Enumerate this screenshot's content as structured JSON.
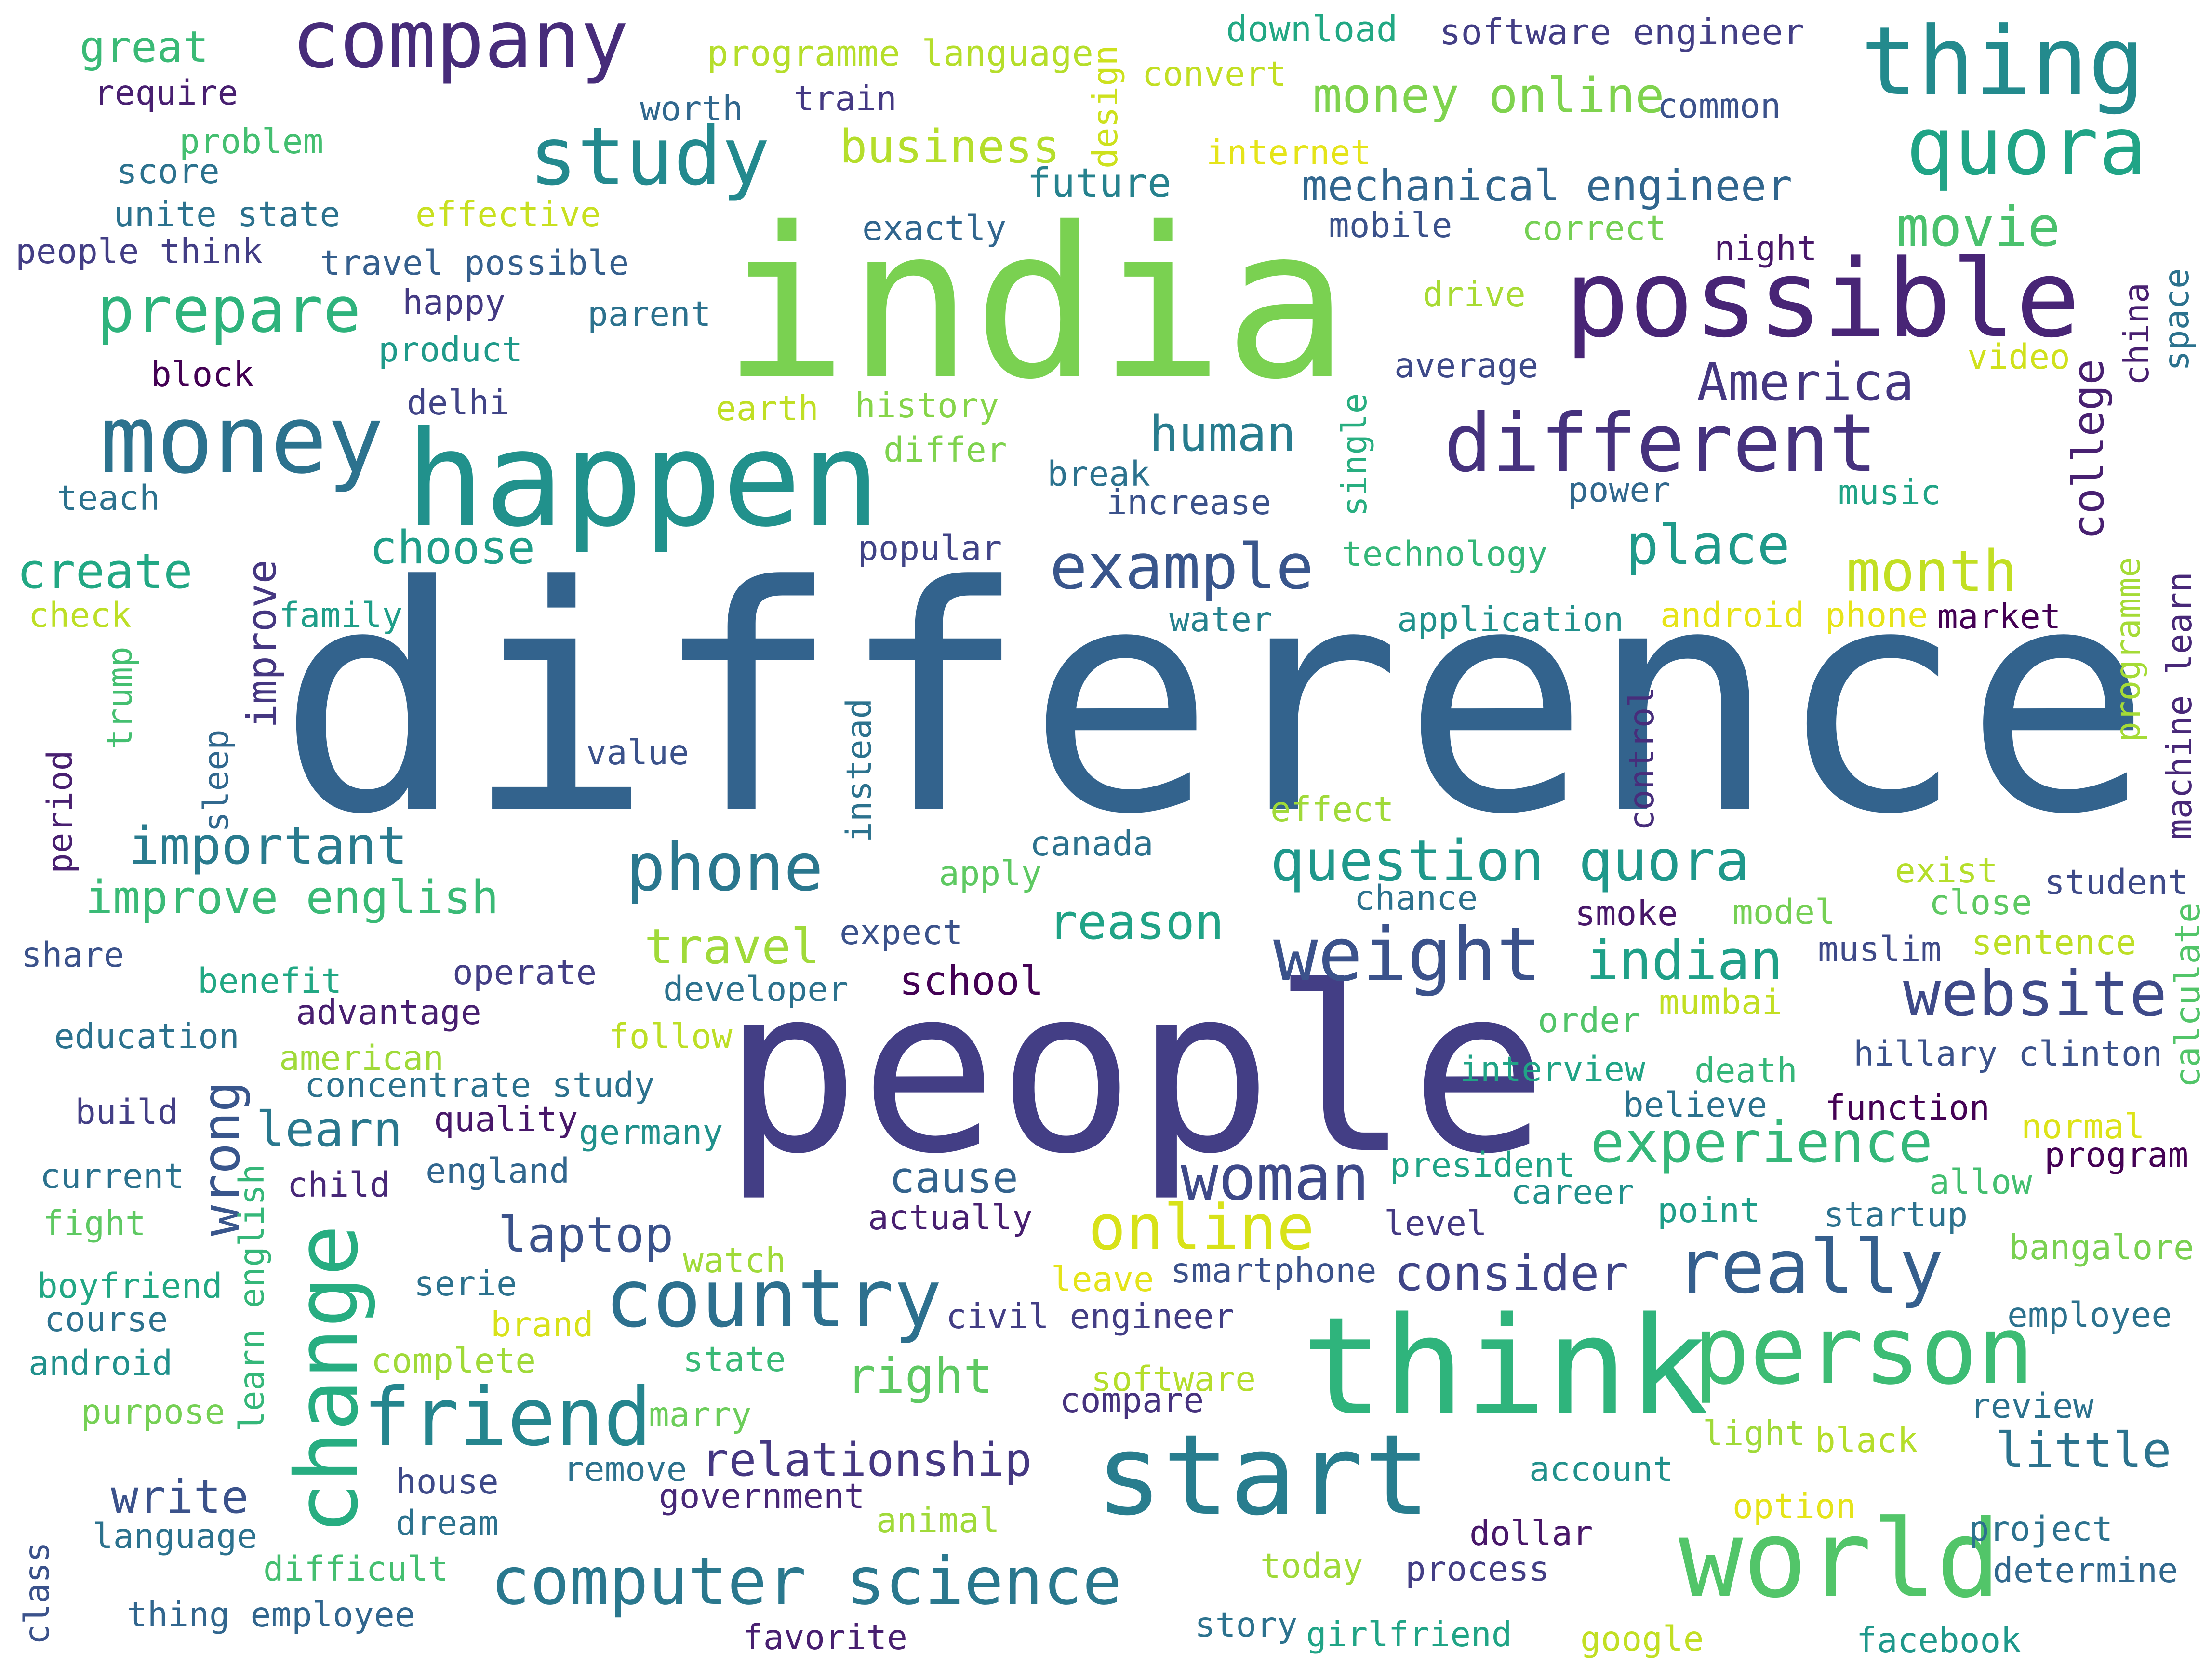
{
  "words": [
    {
      "text": "difference",
      "color": "#33638d"
    },
    {
      "text": "india",
      "color": "#7ad151"
    },
    {
      "text": "people",
      "color": "#433e85"
    },
    {
      "text": "happen",
      "color": "#21918c"
    },
    {
      "text": "think",
      "color": "#2fb47c"
    },
    {
      "text": "possible",
      "color": "#482576"
    },
    {
      "text": "start",
      "color": "#287d8e"
    },
    {
      "text": "world",
      "color": "#52c569"
    },
    {
      "text": "thing",
      "color": "#238a8d"
    },
    {
      "text": "company",
      "color": "#472c7a"
    },
    {
      "text": "money",
      "color": "#2c728e"
    },
    {
      "text": "person",
      "color": "#3dbc74"
    },
    {
      "text": "different",
      "color": "#46327e"
    },
    {
      "text": "quora",
      "color": "#20a486"
    },
    {
      "text": "study",
      "color": "#23898e"
    },
    {
      "text": "friend",
      "color": "#25858e"
    },
    {
      "text": "country",
      "color": "#2d708e"
    },
    {
      "text": "change",
      "color": "#27ad81"
    },
    {
      "text": "computer science",
      "color": "#2a788e"
    },
    {
      "text": "weight",
      "color": "#3b528b"
    },
    {
      "text": "really",
      "color": "#355f8d"
    },
    {
      "text": "prepare",
      "color": "#2eb37c"
    },
    {
      "text": "example",
      "color": "#39568c"
    },
    {
      "text": "phone",
      "color": "#2a778e"
    },
    {
      "text": "online",
      "color": "#d8e219"
    },
    {
      "text": "website",
      "color": "#3e4a89"
    },
    {
      "text": "woman",
      "color": "#3e4989"
    },
    {
      "text": "question quora",
      "color": "#1f988b"
    },
    {
      "text": "experience",
      "color": "#35b779"
    },
    {
      "text": "month",
      "color": "#c2df23"
    },
    {
      "text": "America",
      "color": "#453781"
    },
    {
      "text": "place",
      "color": "#1f9a8a"
    },
    {
      "text": "movie",
      "color": "#4ac16d"
    },
    {
      "text": "important",
      "color": "#297b8e"
    },
    {
      "text": "improve english",
      "color": "#3aba76"
    },
    {
      "text": "relationship",
      "color": "#453882"
    },
    {
      "text": "laptop",
      "color": "#3b528b"
    },
    {
      "text": "indian",
      "color": "#1fa088"
    },
    {
      "text": "human",
      "color": "#287c8e"
    },
    {
      "text": "create",
      "color": "#22a884"
    },
    {
      "text": "choose",
      "color": "#1f9e89"
    },
    {
      "text": "travel",
      "color": "#a0da39"
    },
    {
      "text": "reason",
      "color": "#20a386"
    },
    {
      "text": "little",
      "color": "#2c738e"
    },
    {
      "text": "consider",
      "color": "#404588"
    },
    {
      "text": "business",
      "color": "#b5de2b"
    },
    {
      "text": "money online",
      "color": "#7fd34e"
    },
    {
      "text": "mechanical engineer",
      "color": "#31668e"
    },
    {
      "text": "college",
      "color": "#482071"
    },
    {
      "text": "cause",
      "color": "#33638d"
    },
    {
      "text": "right",
      "color": "#5ec962"
    },
    {
      "text": "learn",
      "color": "#2a788e"
    },
    {
      "text": "write",
      "color": "#3b528b"
    },
    {
      "text": "wrong",
      "color": "#39568c"
    },
    {
      "text": "improve",
      "color": "#453781"
    },
    {
      "text": "future",
      "color": "#26828e"
    },
    {
      "text": "school",
      "color": "#440154"
    },
    {
      "text": "software engineer",
      "color": "#433e85"
    },
    {
      "text": "download",
      "color": "#22a884"
    },
    {
      "text": "programme language",
      "color": "#b5de2b"
    },
    {
      "text": "great",
      "color": "#3aba76"
    },
    {
      "text": "require",
      "color": "#481f70"
    },
    {
      "text": "problem",
      "color": "#44bf70"
    },
    {
      "text": "score",
      "color": "#2c728e"
    },
    {
      "text": "unite state",
      "color": "#2c728e"
    },
    {
      "text": "people think",
      "color": "#433e85"
    },
    {
      "text": "worth",
      "color": "#31688e"
    },
    {
      "text": "train",
      "color": "#443983"
    },
    {
      "text": "design",
      "color": "#cde11d"
    },
    {
      "text": "convert",
      "color": "#c2df23"
    },
    {
      "text": "common",
      "color": "#3b528b"
    },
    {
      "text": "internet",
      "color": "#e5e419"
    },
    {
      "text": "effective",
      "color": "#c8e020"
    },
    {
      "text": "exactly",
      "color": "#31668e"
    },
    {
      "text": "mobile",
      "color": "#3b528b"
    },
    {
      "text": "correct",
      "color": "#75d054"
    },
    {
      "text": "night",
      "color": "#481769"
    },
    {
      "text": "travel possible",
      "color": "#355f8d"
    },
    {
      "text": "happy",
      "color": "#443a83"
    },
    {
      "text": "parent",
      "color": "#2c728e"
    },
    {
      "text": "drive",
      "color": "#a8db34"
    },
    {
      "text": "china",
      "color": "#481f70"
    },
    {
      "text": "space",
      "color": "#2c728e"
    },
    {
      "text": "product",
      "color": "#1f9a8a"
    },
    {
      "text": "block",
      "color": "#440154"
    },
    {
      "text": "average",
      "color": "#3e4a89"
    },
    {
      "text": "video",
      "color": "#d0e11c"
    },
    {
      "text": "delhi",
      "color": "#414487"
    },
    {
      "text": "earth",
      "color": "#c0df25"
    },
    {
      "text": "history",
      "color": "#86d549"
    },
    {
      "text": "single",
      "color": "#28ae80"
    },
    {
      "text": "teach",
      "color": "#2c728e"
    },
    {
      "text": "differ",
      "color": "#7fd34e"
    },
    {
      "text": "break",
      "color": "#2c728e"
    },
    {
      "text": "increase",
      "color": "#3b528b"
    },
    {
      "text": "power",
      "color": "#31688e"
    },
    {
      "text": "music",
      "color": "#20a486"
    },
    {
      "text": "popular",
      "color": "#414487"
    },
    {
      "text": "technology",
      "color": "#35b779"
    },
    {
      "text": "programme",
      "color": "#a5db36"
    },
    {
      "text": "machine learn",
      "color": "#482878"
    },
    {
      "text": "check",
      "color": "#bddf26"
    },
    {
      "text": "family",
      "color": "#1f9e89"
    },
    {
      "text": "water",
      "color": "#26828e"
    },
    {
      "text": "application",
      "color": "#21918c"
    },
    {
      "text": "android phone",
      "color": "#e7e419"
    },
    {
      "text": "market",
      "color": "#440154"
    },
    {
      "text": "trump",
      "color": "#44bf70"
    },
    {
      "text": "instead",
      "color": "#2c728e"
    },
    {
      "text": "control",
      "color": "#472d7b"
    },
    {
      "text": "period",
      "color": "#481f70"
    },
    {
      "text": "sleep",
      "color": "#31688e"
    },
    {
      "text": "value",
      "color": "#3b528b"
    },
    {
      "text": "effect",
      "color": "#a0da39"
    },
    {
      "text": "canada",
      "color": "#2c728e"
    },
    {
      "text": "apply",
      "color": "#5ec962"
    },
    {
      "text": "exist",
      "color": "#b5de2b"
    },
    {
      "text": "student",
      "color": "#3e4a89"
    },
    {
      "text": "chance",
      "color": "#2c728e"
    },
    {
      "text": "smoke",
      "color": "#481769"
    },
    {
      "text": "model",
      "color": "#75d054"
    },
    {
      "text": "close",
      "color": "#5ec962"
    },
    {
      "text": "share",
      "color": "#3b528b"
    },
    {
      "text": "expect",
      "color": "#3b528b"
    },
    {
      "text": "muslim",
      "color": "#3e4a89"
    },
    {
      "text": "sentence",
      "color": "#bddf26"
    },
    {
      "text": "calculate",
      "color": "#52c569"
    },
    {
      "text": "benefit",
      "color": "#22a884"
    },
    {
      "text": "operate",
      "color": "#433e85"
    },
    {
      "text": "developer",
      "color": "#2c728e"
    },
    {
      "text": "order",
      "color": "#52c569"
    },
    {
      "text": "mumbai",
      "color": "#c2df23"
    },
    {
      "text": "education",
      "color": "#2c728e"
    },
    {
      "text": "advantage",
      "color": "#481f70"
    },
    {
      "text": "follow",
      "color": "#bddf26"
    },
    {
      "text": "hillary clinton",
      "color": "#3b528b"
    },
    {
      "text": "american",
      "color": "#a0da39"
    },
    {
      "text": "concentrate study",
      "color": "#2c728e"
    },
    {
      "text": "interview",
      "color": "#20a486"
    },
    {
      "text": "death",
      "color": "#35b779"
    },
    {
      "text": "build",
      "color": "#433e85"
    },
    {
      "text": "quality",
      "color": "#481769"
    },
    {
      "text": "germany",
      "color": "#21918c"
    },
    {
      "text": "believe",
      "color": "#2c728e"
    },
    {
      "text": "function",
      "color": "#440154"
    },
    {
      "text": "normal",
      "color": "#dde318"
    },
    {
      "text": "program",
      "color": "#440154"
    },
    {
      "text": "current",
      "color": "#2c728e"
    },
    {
      "text": "learn english",
      "color": "#35b779"
    },
    {
      "text": "england",
      "color": "#31668e"
    },
    {
      "text": "president",
      "color": "#20a486"
    },
    {
      "text": "career",
      "color": "#21918c"
    },
    {
      "text": "allow",
      "color": "#44bf70"
    },
    {
      "text": "child",
      "color": "#482878"
    },
    {
      "text": "actually",
      "color": "#481f70"
    },
    {
      "text": "level",
      "color": "#443983"
    },
    {
      "text": "point",
      "color": "#1f9e89"
    },
    {
      "text": "startup",
      "color": "#2c728e"
    },
    {
      "text": "fight",
      "color": "#5ec962"
    },
    {
      "text": "watch",
      "color": "#a0da39"
    },
    {
      "text": "leave",
      "color": "#e5e419"
    },
    {
      "text": "smartphone",
      "color": "#3b528b"
    },
    {
      "text": "bangalore",
      "color": "#7ad151"
    },
    {
      "text": "boyfriend",
      "color": "#22a884"
    },
    {
      "text": "serie",
      "color": "#2c728e"
    },
    {
      "text": "course",
      "color": "#2c728e"
    },
    {
      "text": "brand",
      "color": "#d8e219"
    },
    {
      "text": "civil engineer",
      "color": "#433e85"
    },
    {
      "text": "employee",
      "color": "#2c728e"
    },
    {
      "text": "android",
      "color": "#21918c"
    },
    {
      "text": "complete",
      "color": "#a0da39"
    },
    {
      "text": "state",
      "color": "#3aba76"
    },
    {
      "text": "software",
      "color": "#b5de2b"
    },
    {
      "text": "compare",
      "color": "#46327e"
    },
    {
      "text": "purpose",
      "color": "#75d054"
    },
    {
      "text": "marry",
      "color": "#6ccd5a"
    },
    {
      "text": "review",
      "color": "#2c728e"
    },
    {
      "text": "light",
      "color": "#a0da39"
    },
    {
      "text": "black",
      "color": "#b5de2b"
    },
    {
      "text": "house",
      "color": "#3e4a89"
    },
    {
      "text": "remove",
      "color": "#2c728e"
    },
    {
      "text": "account",
      "color": "#21918c"
    },
    {
      "text": "government",
      "color": "#482878"
    },
    {
      "text": "dream",
      "color": "#2c728e"
    },
    {
      "text": "option",
      "color": "#e5e419"
    },
    {
      "text": "language",
      "color": "#2c728e"
    },
    {
      "text": "animal",
      "color": "#a0da39"
    },
    {
      "text": "dollar",
      "color": "#481769"
    },
    {
      "text": "project",
      "color": "#2c728e"
    },
    {
      "text": "difficult",
      "color": "#44bf70"
    },
    {
      "text": "today",
      "color": "#a0da39"
    },
    {
      "text": "process",
      "color": "#433e85"
    },
    {
      "text": "determine",
      "color": "#31688e"
    },
    {
      "text": "class",
      "color": "#3b528b"
    },
    {
      "text": "thing employee",
      "color": "#31668e"
    },
    {
      "text": "story",
      "color": "#2c728e"
    },
    {
      "text": "girlfriend",
      "color": "#20a486"
    },
    {
      "text": "google",
      "color": "#c2df23"
    },
    {
      "text": "facebook",
      "color": "#1f988b"
    },
    {
      "text": "favorite",
      "color": "#481f70"
    }
  ]
}
